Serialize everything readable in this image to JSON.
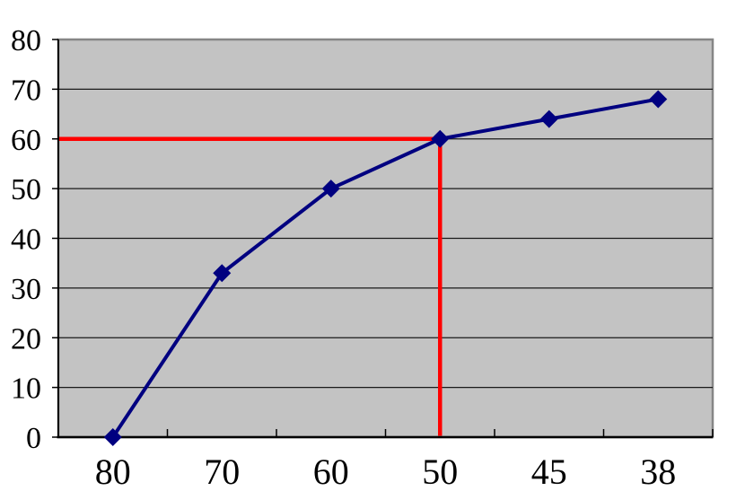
{
  "chart_data": {
    "type": "line",
    "title": "",
    "xlabel": "",
    "ylabel": "",
    "categories": [
      "80",
      "70",
      "60",
      "50",
      "45",
      "38"
    ],
    "series": [
      {
        "name": "main-series",
        "values": [
          0,
          33,
          50,
          60,
          64,
          68
        ]
      }
    ],
    "ylim": [
      0,
      80
    ],
    "y_ticks": [
      0,
      10,
      20,
      30,
      40,
      50,
      60,
      70,
      80
    ],
    "grid": "horizontal-major",
    "legend_position": "none",
    "marker_shape": "diamond",
    "annotation": {
      "shape": "crosshair",
      "at_category": "50",
      "at_value": 60,
      "description": "red guide lines from y-axis at 60 to the data point above category 50, then down to the x-axis"
    },
    "colors": {
      "series_line": "#000080",
      "marker": "#000080",
      "annotation_line": "#ff0000",
      "plot_background": "#c3c3c3",
      "plot_border": "#868686",
      "gridline": "#1a1a1a",
      "axis": "#000000",
      "tick": "#000000",
      "label_text": "#000000",
      "page_background": "#ffffff"
    }
  }
}
